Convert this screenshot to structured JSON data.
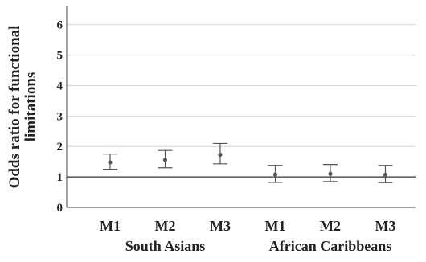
{
  "chart_data": {
    "type": "scatter",
    "title": "",
    "xlabel": "",
    "ylabel_lines": [
      "Odds ratio for functional",
      "limitations"
    ],
    "ylim": [
      0,
      6.6
    ],
    "yticks": [
      0,
      1,
      2,
      3,
      4,
      5,
      6
    ],
    "grid": true,
    "reference_line": 1,
    "categories": [
      "M1",
      "M2",
      "M3",
      "M1",
      "M2",
      "M3"
    ],
    "groups": [
      {
        "label": "South Asians",
        "start": 0,
        "end": 2
      },
      {
        "label": "African Caribbeans",
        "start": 3,
        "end": 5
      }
    ],
    "values": [
      1.48,
      1.56,
      1.73,
      1.08,
      1.1,
      1.07
    ],
    "ci_low": [
      1.25,
      1.3,
      1.43,
      0.82,
      0.85,
      0.81
    ],
    "ci_high": [
      1.75,
      1.87,
      2.1,
      1.38,
      1.41,
      1.38
    ],
    "colors": {
      "point": "#555555",
      "grid": "#d4d4d4",
      "axis": "#444444",
      "reference": "#333333"
    }
  }
}
